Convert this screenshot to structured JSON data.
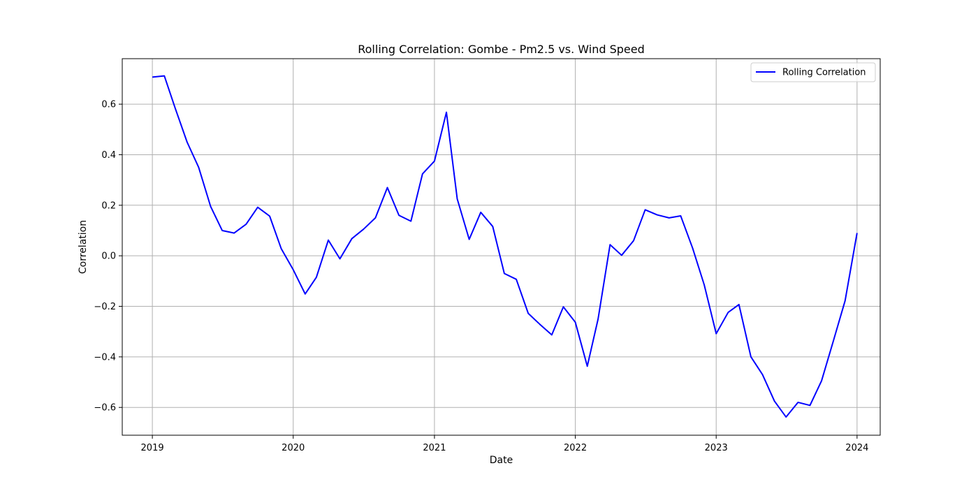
{
  "chart_data": {
    "type": "line",
    "title": "Rolling Correlation: Gombe - Pm2.5 vs. Wind Speed",
    "xlabel": "Date",
    "ylabel": "Correlation",
    "xlim": [
      "2018-10-15",
      "2024-03-01"
    ],
    "ylim": [
      -0.71,
      0.78
    ],
    "xticks": [
      {
        "label": "2019",
        "date": "2019-01-01"
      },
      {
        "label": "2020",
        "date": "2020-01-01"
      },
      {
        "label": "2021",
        "date": "2021-01-01"
      },
      {
        "label": "2022",
        "date": "2022-01-01"
      },
      {
        "label": "2023",
        "date": "2023-01-01"
      },
      {
        "label": "2024",
        "date": "2024-01-01"
      }
    ],
    "yticks": [
      -0.6,
      -0.4,
      -0.2,
      0.0,
      0.2,
      0.4,
      0.6
    ],
    "ytick_labels": [
      "−0.6",
      "−0.4",
      "−0.2",
      "0.0",
      "0.2",
      "0.4",
      "0.6"
    ],
    "grid": true,
    "legend_position": "top-right",
    "series": [
      {
        "name": "Rolling Correlation",
        "color": "#0000ff",
        "x": [
          "2019-01-01",
          "2019-02-01",
          "2019-03-01",
          "2019-04-01",
          "2019-05-01",
          "2019-06-01",
          "2019-07-01",
          "2019-08-01",
          "2019-09-01",
          "2019-10-01",
          "2019-11-01",
          "2019-12-01",
          "2020-01-01",
          "2020-02-01",
          "2020-03-01",
          "2020-04-01",
          "2020-05-01",
          "2020-06-01",
          "2020-07-01",
          "2020-08-01",
          "2020-09-01",
          "2020-10-01",
          "2020-11-01",
          "2020-12-01",
          "2021-01-01",
          "2021-02-01",
          "2021-03-01",
          "2021-04-01",
          "2021-05-01",
          "2021-06-01",
          "2021-07-01",
          "2021-08-01",
          "2021-09-01",
          "2021-10-01",
          "2021-11-01",
          "2021-12-01",
          "2022-01-01",
          "2022-02-01",
          "2022-03-01",
          "2022-04-01",
          "2022-05-01",
          "2022-06-01",
          "2022-07-01",
          "2022-08-01",
          "2022-09-01",
          "2022-10-01",
          "2022-11-01",
          "2022-12-01",
          "2023-01-01",
          "2023-02-01",
          "2023-03-01",
          "2023-04-01",
          "2023-05-01",
          "2023-06-01",
          "2023-07-01",
          "2023-08-01",
          "2023-09-01",
          "2023-10-01",
          "2023-11-01",
          "2023-12-01",
          "2024-01-01"
        ],
        "values": [
          0.707,
          0.712,
          0.585,
          0.45,
          0.35,
          0.195,
          0.1,
          0.09,
          0.125,
          0.192,
          0.157,
          0.028,
          -0.055,
          -0.151,
          -0.085,
          0.062,
          -0.012,
          0.068,
          0.105,
          0.15,
          0.27,
          0.16,
          0.137,
          0.324,
          0.375,
          0.568,
          0.225,
          0.065,
          0.172,
          0.116,
          -0.07,
          -0.093,
          -0.228,
          -0.271,
          -0.313,
          -0.202,
          -0.263,
          -0.437,
          -0.25,
          0.044,
          0.002,
          0.06,
          0.182,
          0.162,
          0.15,
          0.158,
          0.03,
          -0.115,
          -0.308,
          -0.224,
          -0.193,
          -0.4,
          -0.47,
          -0.575,
          -0.638,
          -0.58,
          -0.592,
          -0.495,
          -0.335,
          -0.178,
          0.09
        ]
      }
    ]
  }
}
